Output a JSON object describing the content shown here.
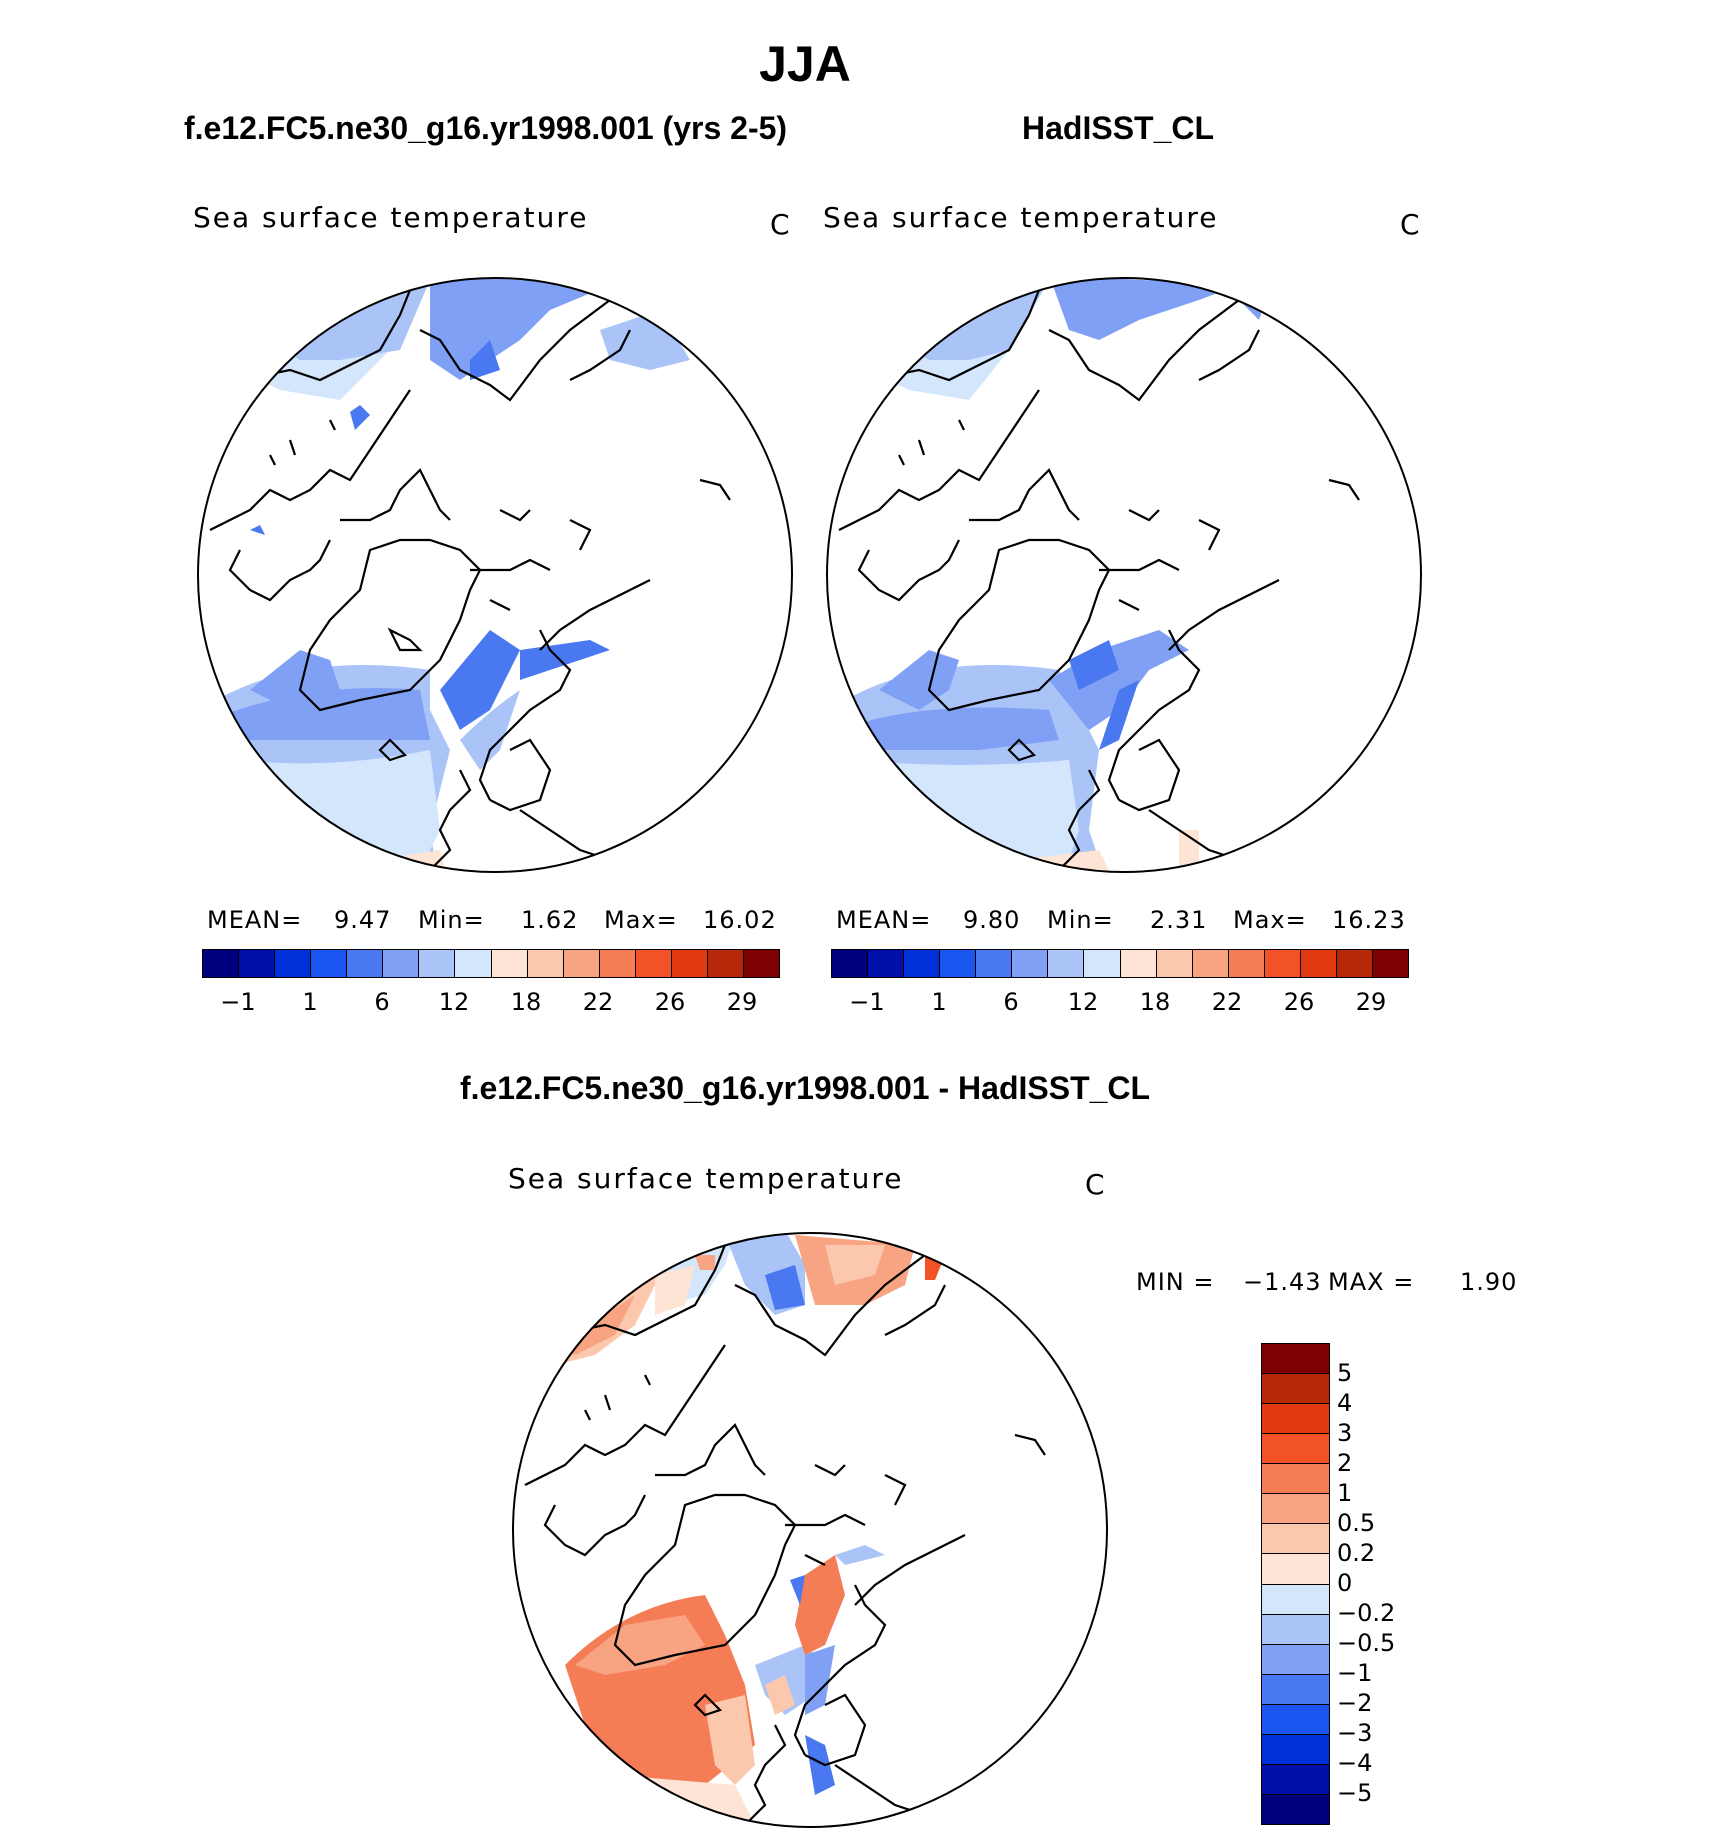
{
  "season": "JJA",
  "panels": [
    {
      "case_title": "f.e12.FC5.ne30_g16.yr1998.001 (yrs 2-5)",
      "variable": "Sea surface temperature",
      "units": "C",
      "stats": {
        "mean_label": "MEAN=",
        "mean": "9.47",
        "min_label": "Min=",
        "min": "1.62",
        "max_label": "Max=",
        "max": "16.02"
      }
    },
    {
      "case_title": "HadISST_CL",
      "variable": "Sea surface temperature",
      "units": "C",
      "stats": {
        "mean_label": "MEAN=",
        "mean": "9.80",
        "min_label": "Min=",
        "min": "2.31",
        "max_label": "Max=",
        "max": "16.23"
      }
    }
  ],
  "abs_colorbar": {
    "colors": [
      "#00007f",
      "#0010a8",
      "#0030d8",
      "#1a55f0",
      "#4a78f0",
      "#7fa0f5",
      "#aac4f8",
      "#d4e6fb",
      "#fde4d4",
      "#fbc8ad",
      "#f8a482",
      "#f57d55",
      "#f35226",
      "#e23a10",
      "#b62808",
      "#7f0000"
    ],
    "tick_labels": [
      "−1",
      "1",
      "6",
      "12",
      "18",
      "22",
      "26",
      "29"
    ]
  },
  "diff_panel": {
    "title": "f.e12.FC5.ne30_g16.yr1998.001 - HadISST_CL",
    "variable": "Sea surface temperature",
    "units": "C",
    "min_label": "MIN =",
    "min": "−1.43",
    "max_label": "MAX =",
    "max": "1.90"
  },
  "diff_colorbar": {
    "colors_top_to_bottom": [
      "#7f0000",
      "#b62808",
      "#e23a10",
      "#f35226",
      "#f57d55",
      "#f8a482",
      "#fbc8ad",
      "#fde4d4",
      "#d4e6fb",
      "#aac4f8",
      "#7fa0f5",
      "#4a78f0",
      "#1a55f0",
      "#0030d8",
      "#0010a8",
      "#00007f"
    ],
    "tick_labels_top_to_bottom": [
      "5",
      "4",
      "3",
      "2",
      "1",
      "0.5",
      "0.2",
      "0",
      "−0.2",
      "−0.5",
      "−1",
      "−2",
      "−3",
      "−4",
      "−5"
    ]
  }
}
